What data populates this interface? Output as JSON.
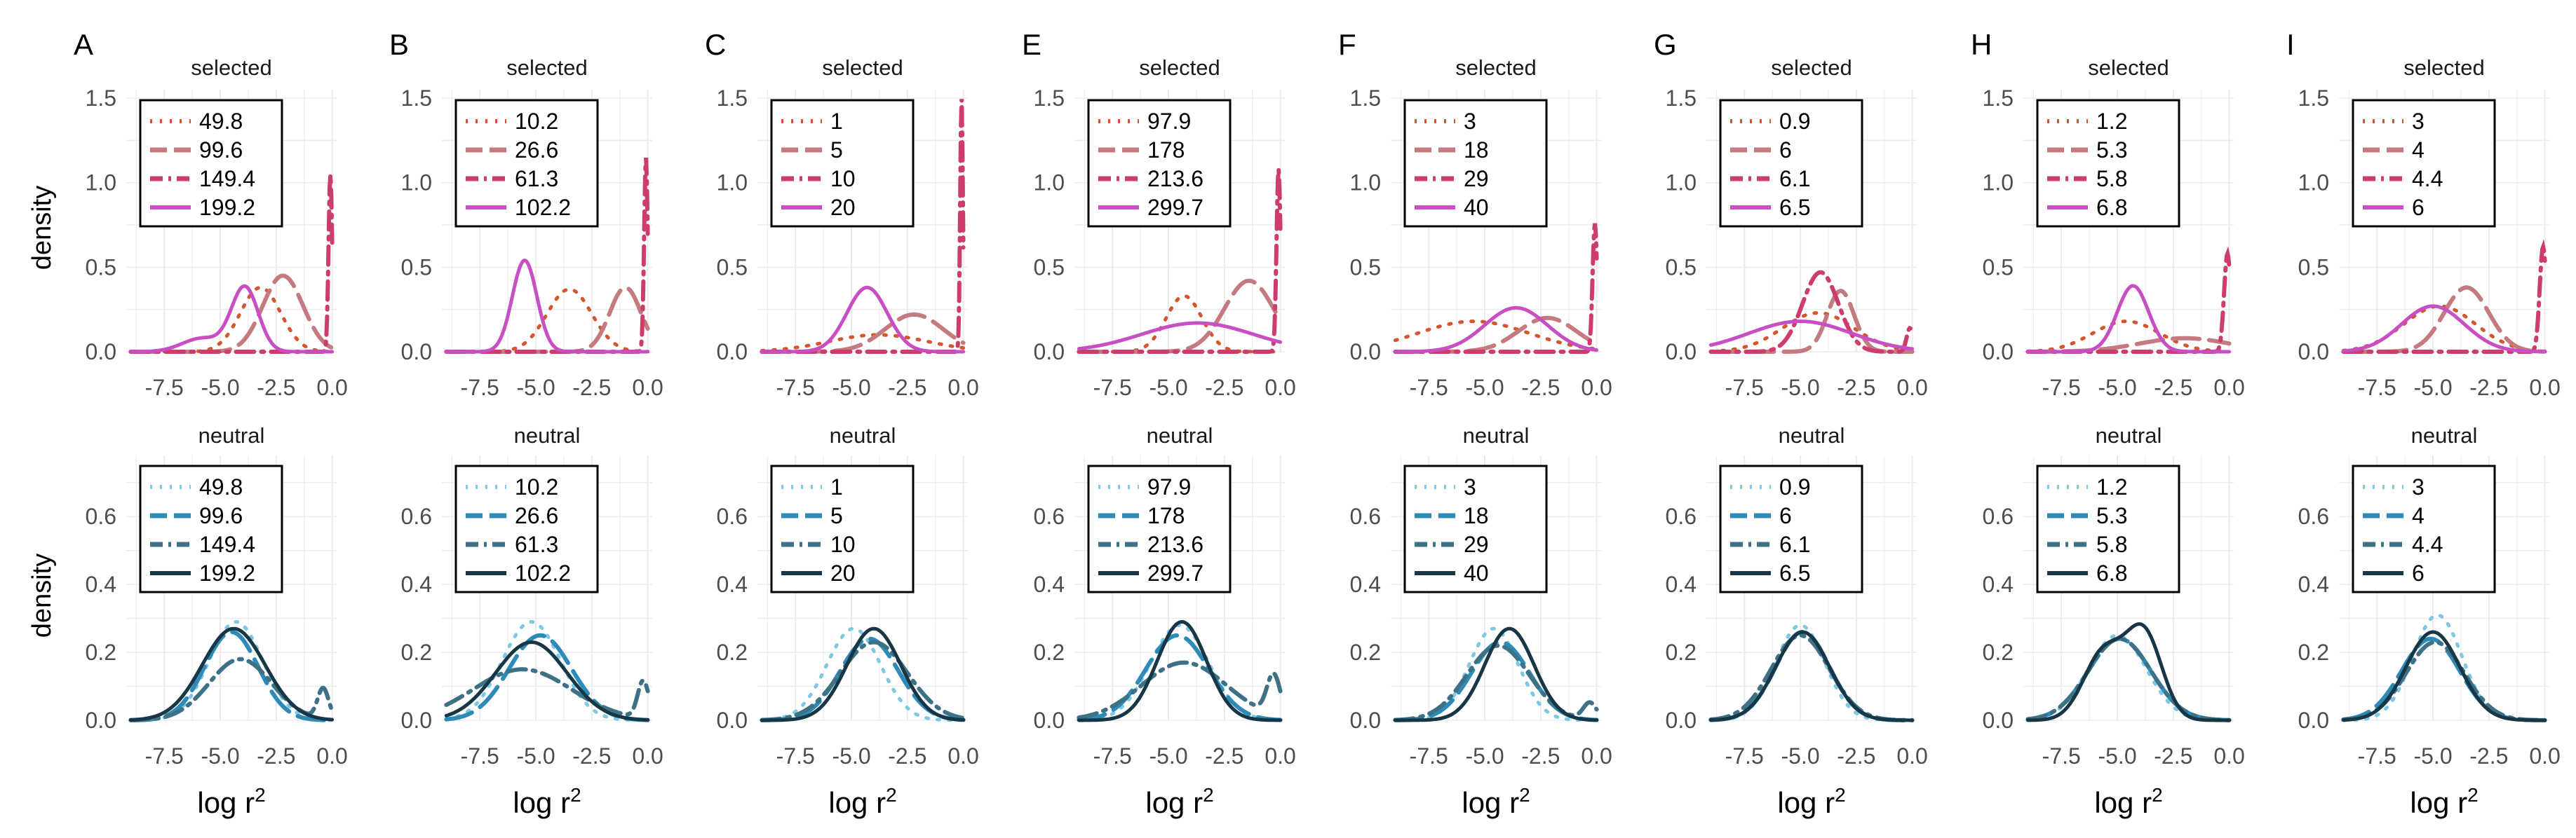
{
  "figure": {
    "ylabel": "density",
    "xlabel_base": "log r",
    "xlabel_sup": "2"
  },
  "colors": {
    "selected": [
      "#d4562e",
      "#c47b80",
      "#cd3d6c",
      "#c84ec4"
    ],
    "neutral": [
      "#7ec8e3",
      "#2e8bb8",
      "#3d7185",
      "#173746"
    ],
    "grid": "#ebebeb",
    "axis_text": "#4d4d4d"
  },
  "rows": [
    {
      "key": "selected",
      "label": "selected",
      "ylim": [
        0,
        1.55
      ],
      "yticks": [
        0.0,
        0.5,
        1.0,
        1.5
      ]
    },
    {
      "key": "neutral",
      "label": "neutral",
      "ylim": [
        0,
        0.78
      ],
      "yticks": [
        0.0,
        0.2,
        0.4,
        0.6
      ]
    }
  ],
  "chart_data": {
    "type": "line",
    "description": "Kernel density estimates of log r^2 for selected and neutral loci across 8 panels",
    "xlim": [
      -9.2,
      0.2
    ],
    "xticks": [
      -7.5,
      -5.0,
      -2.5,
      0.0
    ],
    "panels": [
      {
        "letter": "A",
        "legend": [
          "49.8",
          "99.6",
          "149.4",
          "199.2"
        ],
        "selected": [
          [
            [
              -3.2,
              0.38,
              0.9
            ]
          ],
          [
            [
              -2.2,
              0.45,
              0.9
            ]
          ],
          [
            [
              -0.08,
              1.05,
              0.08
            ]
          ],
          [
            [
              -3.9,
              0.38,
              0.6
            ],
            [
              -5.8,
              0.08,
              0.9
            ]
          ]
        ],
        "neutral": [
          [
            [
              -4.3,
              0.29,
              1.2
            ]
          ],
          [
            [
              -4.5,
              0.26,
              1.2
            ]
          ],
          [
            [
              -4.1,
              0.18,
              1.4
            ],
            [
              -0.4,
              0.09,
              0.25
            ]
          ],
          [
            [
              -4.4,
              0.27,
              1.4
            ]
          ]
        ]
      },
      {
        "letter": "B",
        "legend": [
          "10.2",
          "26.6",
          "61.3",
          "102.2"
        ],
        "selected": [
          [
            [
              -3.5,
              0.37,
              1.0
            ]
          ],
          [
            [
              -1.0,
              0.38,
              0.7
            ]
          ],
          [
            [
              -0.08,
              1.15,
              0.08
            ]
          ],
          [
            [
              -5.5,
              0.54,
              0.55
            ]
          ]
        ],
        "neutral": [
          [
            [
              -5.2,
              0.29,
              1.3
            ]
          ],
          [
            [
              -4.8,
              0.25,
              1.4
            ]
          ],
          [
            [
              -5.6,
              0.15,
              2.2
            ],
            [
              -0.2,
              0.11,
              0.25
            ]
          ],
          [
            [
              -5.2,
              0.23,
              1.6
            ]
          ]
        ]
      },
      {
        "letter": "C",
        "legend": [
          "1",
          "5",
          "10",
          "20"
        ],
        "selected": [
          [
            [
              -3.8,
              0.1,
              2.2
            ]
          ],
          [
            [
              -2.2,
              0.22,
              1.3
            ]
          ],
          [
            [
              -0.08,
              1.5,
              0.06
            ]
          ],
          [
            [
              -4.3,
              0.38,
              0.9
            ]
          ]
        ],
        "neutral": [
          [
            [
              -4.9,
              0.27,
              1.2
            ]
          ],
          [
            [
              -4.2,
              0.24,
              1.3
            ]
          ],
          [
            [
              -4.0,
              0.23,
              1.5
            ]
          ],
          [
            [
              -4.0,
              0.27,
              1.2
            ]
          ]
        ]
      },
      {
        "letter": "E",
        "legend": [
          "97.9",
          "178",
          "213.6",
          "299.7"
        ],
        "selected": [
          [
            [
              -4.3,
              0.33,
              0.8
            ]
          ],
          [
            [
              -1.4,
              0.42,
              1.1
            ]
          ],
          [
            [
              -0.08,
              1.08,
              0.09
            ]
          ],
          [
            [
              -3.7,
              0.17,
              2.5
            ]
          ]
        ],
        "neutral": [
          [
            [
              -4.5,
              0.28,
              1.3
            ]
          ],
          [
            [
              -4.6,
              0.25,
              1.4
            ]
          ],
          [
            [
              -4.3,
              0.17,
              1.9
            ],
            [
              -0.3,
              0.12,
              0.3
            ]
          ],
          [
            [
              -4.4,
              0.29,
              1.1
            ]
          ]
        ]
      },
      {
        "letter": "F",
        "legend": [
          "3",
          "18",
          "29",
          "40"
        ],
        "selected": [
          [
            [
              -5.5,
              0.18,
              2.5
            ]
          ],
          [
            [
              -2.2,
              0.2,
              1.3
            ]
          ],
          [
            [
              -0.08,
              0.76,
              0.1
            ]
          ],
          [
            [
              -3.6,
              0.26,
              1.4
            ]
          ]
        ],
        "neutral": [
          [
            [
              -4.6,
              0.27,
              1.1
            ]
          ],
          [
            [
              -4.3,
              0.23,
              1.3
            ]
          ],
          [
            [
              -4.4,
              0.22,
              1.4
            ],
            [
              -0.3,
              0.05,
              0.3
            ]
          ],
          [
            [
              -3.9,
              0.27,
              1.1
            ]
          ]
        ]
      },
      {
        "letter": "G",
        "legend": [
          "0.9",
          "6",
          "6.1",
          "6.5"
        ],
        "selected": [
          [
            [
              -4.2,
              0.23,
              1.6
            ]
          ],
          [
            [
              -3.2,
              0.36,
              0.6
            ]
          ],
          [
            [
              -4.1,
              0.47,
              0.8
            ],
            [
              -0.1,
              0.14,
              0.15
            ]
          ],
          [
            [
              -5.0,
              0.18,
              2.3
            ]
          ]
        ],
        "neutral": [
          [
            [
              -5.0,
              0.28,
              1.1
            ]
          ],
          [
            [
              -4.9,
              0.26,
              1.2
            ]
          ],
          [
            [
              -5.0,
              0.25,
              1.3
            ]
          ],
          [
            [
              -4.9,
              0.26,
              1.2
            ]
          ]
        ]
      },
      {
        "letter": "H",
        "legend": [
          "1.2",
          "5.3",
          "5.8",
          "6.8"
        ],
        "selected": [
          [
            [
              -4.6,
              0.18,
              1.5
            ]
          ],
          [
            [
              -2.0,
              0.08,
              2.0
            ]
          ],
          [
            [
              -0.08,
              0.58,
              0.15
            ]
          ],
          [
            [
              -4.3,
              0.39,
              0.7
            ]
          ]
        ],
        "neutral": [
          [
            [
              -5.0,
              0.25,
              1.3
            ]
          ],
          [
            [
              -4.9,
              0.24,
              1.4
            ]
          ],
          [
            [
              -4.9,
              0.24,
              1.4
            ]
          ],
          [
            [
              -3.8,
              0.25,
              0.8
            ],
            [
              -5.6,
              0.2,
              0.9
            ]
          ]
        ]
      },
      {
        "letter": "I",
        "legend": [
          "3",
          "4",
          "4.4",
          "6"
        ],
        "selected": [
          [
            [
              -4.7,
              0.27,
              1.6
            ]
          ],
          [
            [
              -3.5,
              0.38,
              1.0
            ]
          ],
          [
            [
              -0.08,
              0.62,
              0.15
            ]
          ],
          [
            [
              -5.0,
              0.27,
              1.4
            ]
          ]
        ],
        "neutral": [
          [
            [
              -4.8,
              0.31,
              1.1
            ]
          ],
          [
            [
              -5.1,
              0.24,
              1.3
            ]
          ],
          [
            [
              -4.9,
              0.23,
              1.3
            ]
          ],
          [
            [
              -5.0,
              0.26,
              1.2
            ]
          ]
        ]
      }
    ]
  }
}
